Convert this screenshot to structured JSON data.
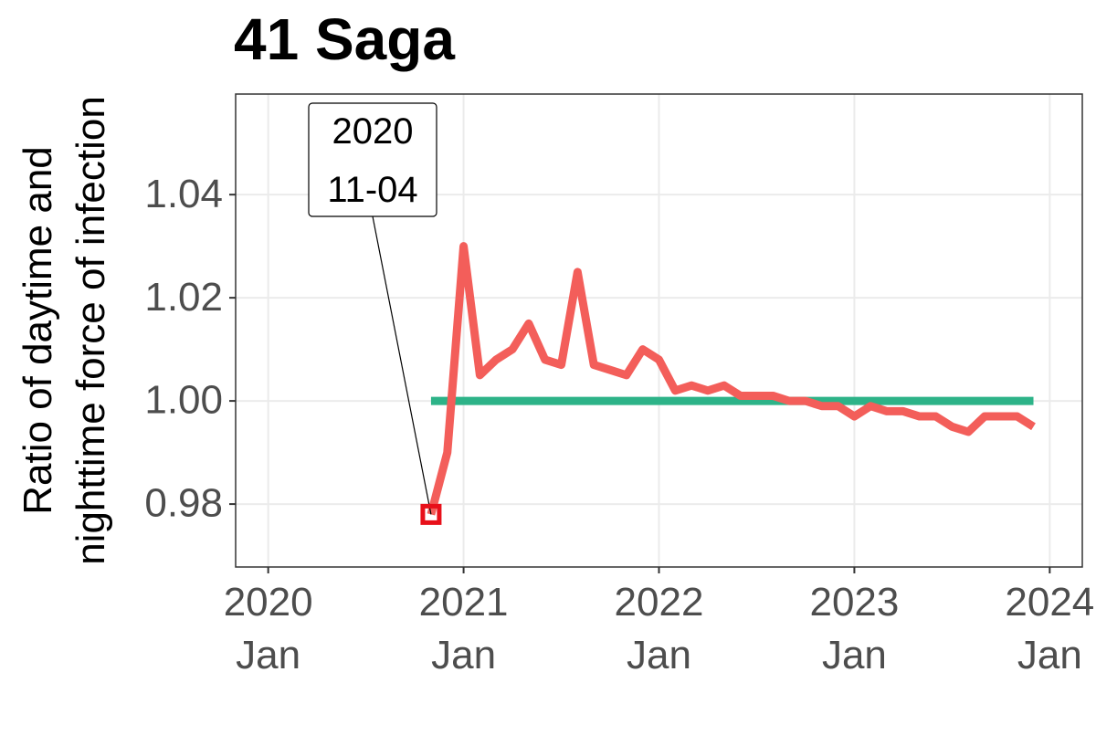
{
  "chart_data": {
    "type": "line",
    "title": "41 Saga",
    "y_label": "Ratio of daytime and\nnighttime force of infection",
    "xlim": [
      "2019-11",
      "2024-03"
    ],
    "xticks": [
      {
        "value": "2020-01",
        "label": "2020\nJan"
      },
      {
        "value": "2021-01",
        "label": "2021\nJan"
      },
      {
        "value": "2022-01",
        "label": "2022\nJan"
      },
      {
        "value": "2023-01",
        "label": "2023\nJan"
      },
      {
        "value": "2024-01",
        "label": "2024\nJan"
      }
    ],
    "ylim": [
      0.9678,
      1.0595
    ],
    "yticks": [
      0.98,
      {
        "value": 1.0,
        "label": "1.00"
      },
      1.02,
      1.04
    ],
    "grid": true,
    "series": [
      {
        "color": "#2db388",
        "x": [
          "2020-11",
          "2023-12"
        ],
        "values": [
          1.0,
          1.0
        ]
      },
      {
        "color": "#f35e5a",
        "x": [
          "2020-11",
          "2020-12",
          "2021-01",
          "2021-02",
          "2021-03",
          "2021-04",
          "2021-05",
          "2021-06",
          "2021-07",
          "2021-08",
          "2021-09",
          "2021-10",
          "2021-11",
          "2021-12",
          "2022-01",
          "2022-02",
          "2022-03",
          "2022-04",
          "2022-05",
          "2022-06",
          "2022-07",
          "2022-08",
          "2022-09",
          "2022-10",
          "2022-11",
          "2022-12",
          "2023-01",
          "2023-02",
          "2023-03",
          "2023-04",
          "2023-05",
          "2023-06",
          "2023-07",
          "2023-08",
          "2023-09",
          "2023-10",
          "2023-11",
          "2023-12"
        ],
        "values": [
          0.978,
          0.99,
          1.03,
          1.005,
          1.008,
          1.01,
          1.015,
          1.008,
          1.007,
          1.025,
          1.007,
          1.006,
          1.005,
          1.01,
          1.008,
          1.002,
          1.003,
          1.002,
          1.003,
          1.001,
          1.001,
          1.001,
          1.0,
          1.0,
          0.999,
          0.999,
          0.997,
          0.999,
          0.998,
          0.998,
          0.997,
          0.997,
          0.995,
          0.994,
          0.997,
          0.997,
          0.997,
          0.995
        ]
      }
    ],
    "annotation": {
      "label": "2020\n11-04",
      "x": "2020-11",
      "value": 0.978
    }
  }
}
